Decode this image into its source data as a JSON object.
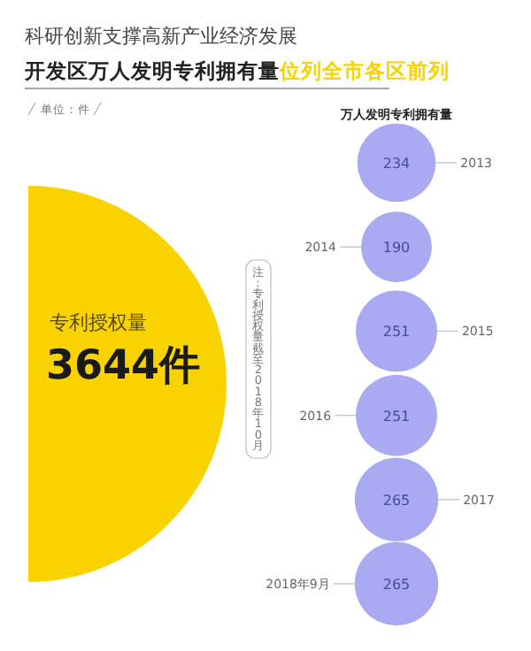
{
  "chart_data": [
    {
      "type": "other",
      "title": "科研创新支撑高新产业经济发展",
      "subtitle": "开发区万人发明专利拥有量",
      "annotations": [
        "位列全市各区前列",
        "单位：件",
        "注：专利授权量截至2018年10月"
      ],
      "categories": [
        "专利授权量"
      ],
      "values": [
        3644
      ],
      "value_labels": [
        "3644件"
      ],
      "color": "#f9d300"
    },
    {
      "type": "other",
      "title": "万人发明专利拥有量",
      "categories": [
        "2013",
        "2014",
        "2015",
        "2016",
        "2017",
        "2018年9月"
      ],
      "values": [
        234,
        190,
        251,
        251,
        265,
        265
      ],
      "color": "#a9aaf2",
      "data_labels": true
    }
  ]
}
